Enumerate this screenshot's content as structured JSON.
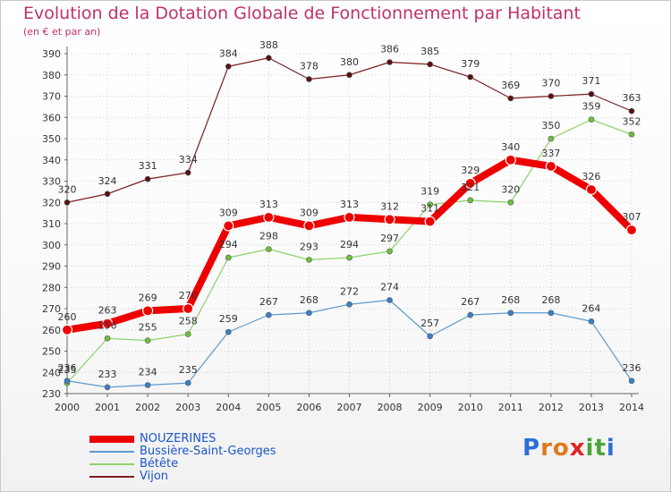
{
  "title": "Evolution de la Dotation Globale de Fonctionnement par Habitant",
  "subtitle": "(en € et par an)",
  "brand": {
    "letters": [
      "P",
      "r",
      "o",
      "x",
      "i",
      "t",
      "i"
    ],
    "colors": [
      "#2b6fd6",
      "#e07a1c",
      "#e07a1c",
      "#e02424",
      "#4aa63a",
      "#4aa63a",
      "#2b6fd6"
    ]
  },
  "chart_data": {
    "type": "line",
    "title": "Evolution de la Dotation Globale de Fonctionnement par Habitant",
    "subtitle": "(en € et par an)",
    "xlabel": "",
    "ylabel": "",
    "x": [
      "2000",
      "2001",
      "2002",
      "2003",
      "2004",
      "2005",
      "2006",
      "2007",
      "2008",
      "2009",
      "2010",
      "2011",
      "2012",
      "2013",
      "2014"
    ],
    "ylim": [
      230,
      390
    ],
    "ytick_step": 10,
    "series": [
      {
        "name": "Vijon",
        "color": "#7a1f1f",
        "point": "#5a1010",
        "width": 1.2,
        "labels": true,
        "values": [
          320,
          324,
          331,
          334,
          384,
          388,
          378,
          380,
          386,
          385,
          379,
          369,
          370,
          371,
          363
        ],
        "label_texts": [
          "320",
          "324",
          "331",
          "334",
          "384",
          "388",
          "378",
          "380",
          "386",
          "385",
          "379",
          "369",
          "370",
          "371",
          "363"
        ]
      },
      {
        "name": "Bétête",
        "color": "#8fd16a",
        "point": "#6cc23a",
        "width": 1.2,
        "labels": true,
        "values": [
          235,
          256,
          255,
          258,
          294,
          298,
          293,
          294,
          297,
          319,
          321,
          320,
          350,
          359,
          352
        ],
        "label_texts": [
          "235",
          "256",
          "255",
          "258",
          "294",
          "298",
          "293",
          "294",
          "297",
          "319",
          "321",
          "320",
          "350",
          "359",
          "352"
        ]
      },
      {
        "name": "Bussière-Saint-Georges",
        "color": "#5b9bd0",
        "point": "#3a80c8",
        "width": 1.2,
        "labels": true,
        "values": [
          236,
          233,
          234,
          235,
          259,
          267,
          268,
          272,
          274,
          257,
          267,
          268,
          268,
          264,
          236
        ],
        "label_texts": [
          "236",
          "233",
          "234",
          "235",
          "259",
          "267",
          "268",
          "272",
          "274",
          "257",
          "267",
          "268",
          "268",
          "264",
          "236"
        ]
      },
      {
        "name": "NOUZERINES",
        "color": "#ee0000",
        "point": "#ee0000",
        "width": 8,
        "labels": true,
        "values": [
          260,
          263,
          269,
          270,
          309,
          313,
          309,
          313,
          312,
          311,
          329,
          340,
          337,
          326,
          307
        ],
        "label_texts": [
          "260",
          "263",
          "269",
          "270",
          "309",
          "313",
          "309",
          "313",
          "312",
          "311",
          "329",
          "340",
          "337",
          "326",
          "307"
        ]
      }
    ],
    "legend": {
      "position": "bottom-left",
      "entries": [
        "NOUZERINES",
        "Bussière-Saint-Georges",
        "Bétête",
        "Vijon"
      ],
      "colors": [
        "#ee0000",
        "#5b9bd0",
        "#8fd16a",
        "#7a1f1f"
      ]
    },
    "grid": true
  }
}
